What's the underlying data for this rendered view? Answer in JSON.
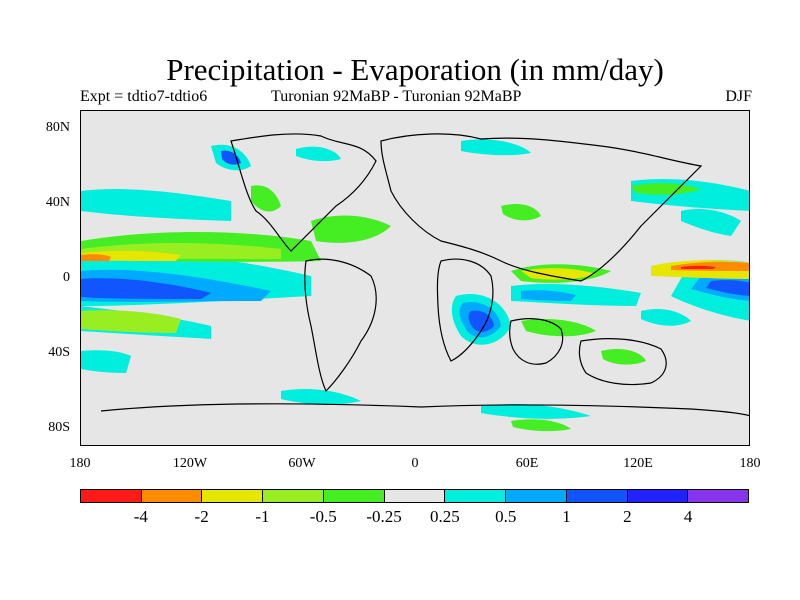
{
  "title": "Precipitation - Evaporation (in mm/day)",
  "subtitle_left": "Expt = tdtio7-tdtio6",
  "subtitle_center": "Turonian  92MaBP - Turonian  92MaBP",
  "subtitle_right": "DJF",
  "y_ticks": [
    "80N",
    "40N",
    "0",
    "40S",
    "80S"
  ],
  "x_ticks": [
    "180",
    "120W",
    "60W",
    "0",
    "60E",
    "120E",
    "180"
  ],
  "colorbar": {
    "colors": [
      "#ff1a1a",
      "#ff8c00",
      "#e6e600",
      "#99ee22",
      "#44ee22",
      "#e6e6e6",
      "#00eedd",
      "#00aaff",
      "#1155ff",
      "#2222ff",
      "#8833ee"
    ],
    "labels": [
      "-4",
      "-2",
      "-1",
      "-0.5",
      "-0.25",
      "0.25",
      "0.5",
      "1",
      "2",
      "4"
    ]
  }
}
